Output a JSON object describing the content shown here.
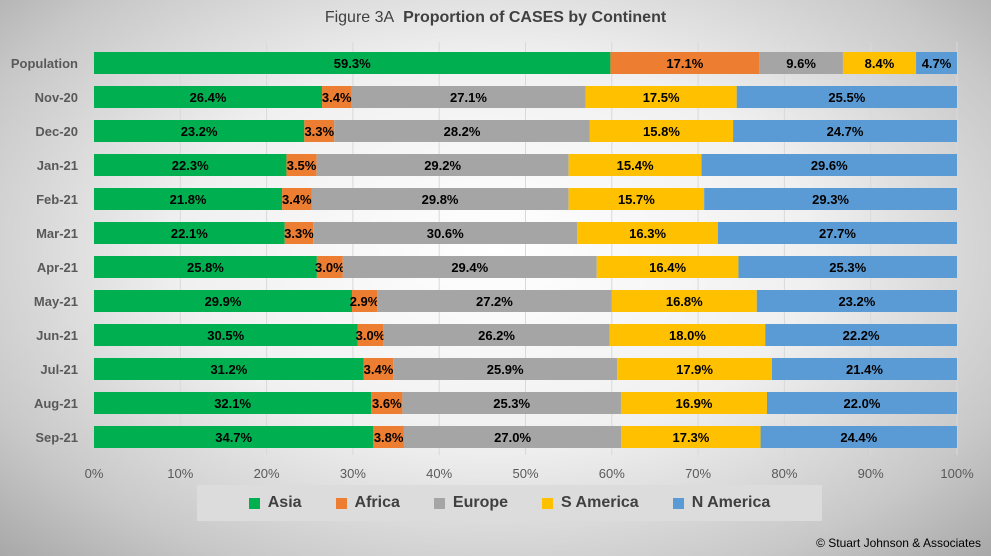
{
  "chart_data": {
    "type": "bar",
    "orientation": "horizontal",
    "stacked": "100%",
    "title_prefix": "Figure  3A",
    "title": "Proportion of CASES by Continent",
    "categories": [
      "Population",
      "Nov-20",
      "Dec-20",
      "Jan-21",
      "Feb-21",
      "Mar-21",
      "Apr-21",
      "May-21",
      "Jun-21",
      "Jul-21",
      "Aug-21",
      "Sep-21"
    ],
    "series": [
      {
        "name": "Asia",
        "color": "#00b050",
        "values": [
          59.3,
          26.4,
          23.2,
          22.3,
          21.8,
          22.1,
          25.8,
          29.9,
          30.5,
          31.2,
          32.1,
          34.7
        ]
      },
      {
        "name": "Africa",
        "color": "#ed7d31",
        "values": [
          17.1,
          3.4,
          3.3,
          3.5,
          3.4,
          3.3,
          3.0,
          2.9,
          3.0,
          3.4,
          3.6,
          3.8
        ]
      },
      {
        "name": "Europe",
        "color": "#a5a5a5",
        "values": [
          9.6,
          27.1,
          28.2,
          29.2,
          29.8,
          30.6,
          29.4,
          27.2,
          26.2,
          25.9,
          25.3,
          27.0
        ]
      },
      {
        "name": "S America",
        "color": "#ffc000",
        "values": [
          8.4,
          17.5,
          15.8,
          15.4,
          15.7,
          16.3,
          16.4,
          16.8,
          18.0,
          17.9,
          16.9,
          17.3
        ]
      },
      {
        "name": "N America",
        "color": "#5b9bd5",
        "values": [
          4.7,
          25.5,
          24.7,
          29.6,
          29.3,
          27.7,
          25.3,
          23.2,
          22.2,
          21.4,
          22.0,
          24.4
        ]
      }
    ],
    "x_ticks": [
      "0%",
      "10%",
      "20%",
      "30%",
      "40%",
      "50%",
      "60%",
      "70%",
      "80%",
      "90%",
      "100%"
    ],
    "xlim": [
      0,
      100
    ],
    "grid": true,
    "legend_position": "bottom"
  },
  "copyright": "© Stuart Johnson & Associates"
}
